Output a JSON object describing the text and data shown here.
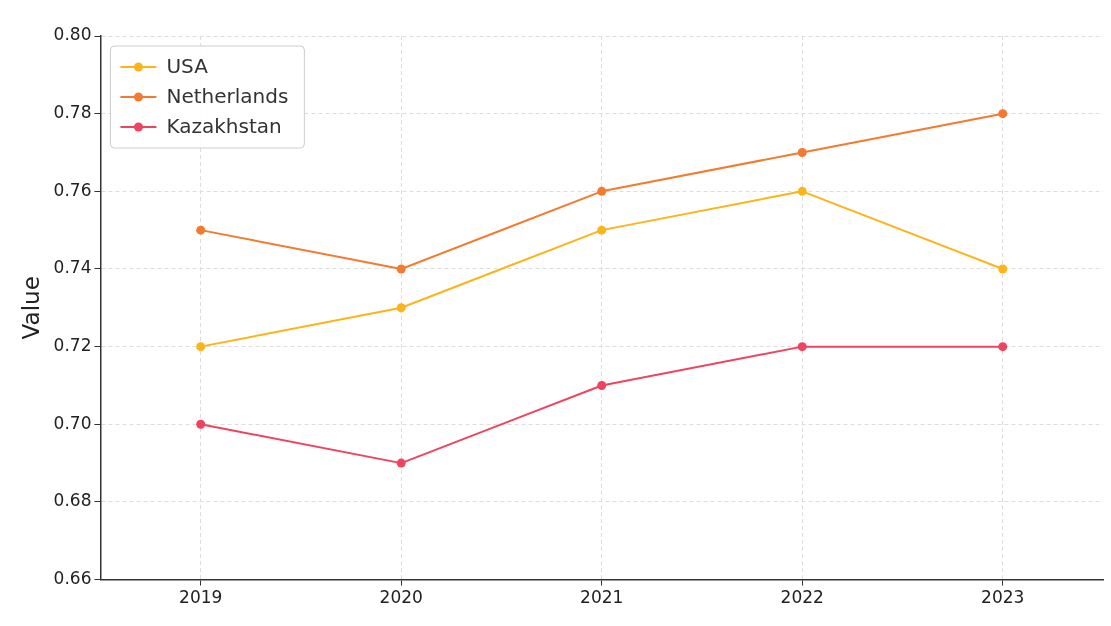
{
  "chart_data": {
    "type": "line",
    "ylabel": "Value",
    "categories": [
      "2019",
      "2020",
      "2021",
      "2022",
      "2023"
    ],
    "series": [
      {
        "name": "USA",
        "color": "#fbb41a",
        "values": [
          0.72,
          0.73,
          0.75,
          0.76,
          0.74
        ]
      },
      {
        "name": "Netherlands",
        "color": "#f47a30",
        "values": [
          0.75,
          0.74,
          0.76,
          0.77,
          0.78
        ]
      },
      {
        "name": "Kazakhstan",
        "color": "#f0435e",
        "values": [
          0.7,
          0.69,
          0.71,
          0.72,
          0.72
        ]
      }
    ],
    "ylim": [
      0.66,
      0.8
    ],
    "yticks": [
      {
        "value": 0.66,
        "label": "0.66"
      },
      {
        "value": 0.68,
        "label": "0.68"
      },
      {
        "value": 0.7,
        "label": "0.70"
      },
      {
        "value": 0.72,
        "label": "0.72"
      },
      {
        "value": 0.74,
        "label": "0.74"
      },
      {
        "value": 0.76,
        "label": "0.76"
      },
      {
        "value": 0.78,
        "label": "0.78"
      },
      {
        "value": 0.8,
        "label": "0.80"
      }
    ],
    "grid": true,
    "legend": "top left",
    "marker": "circle",
    "line_style": "solid"
  }
}
